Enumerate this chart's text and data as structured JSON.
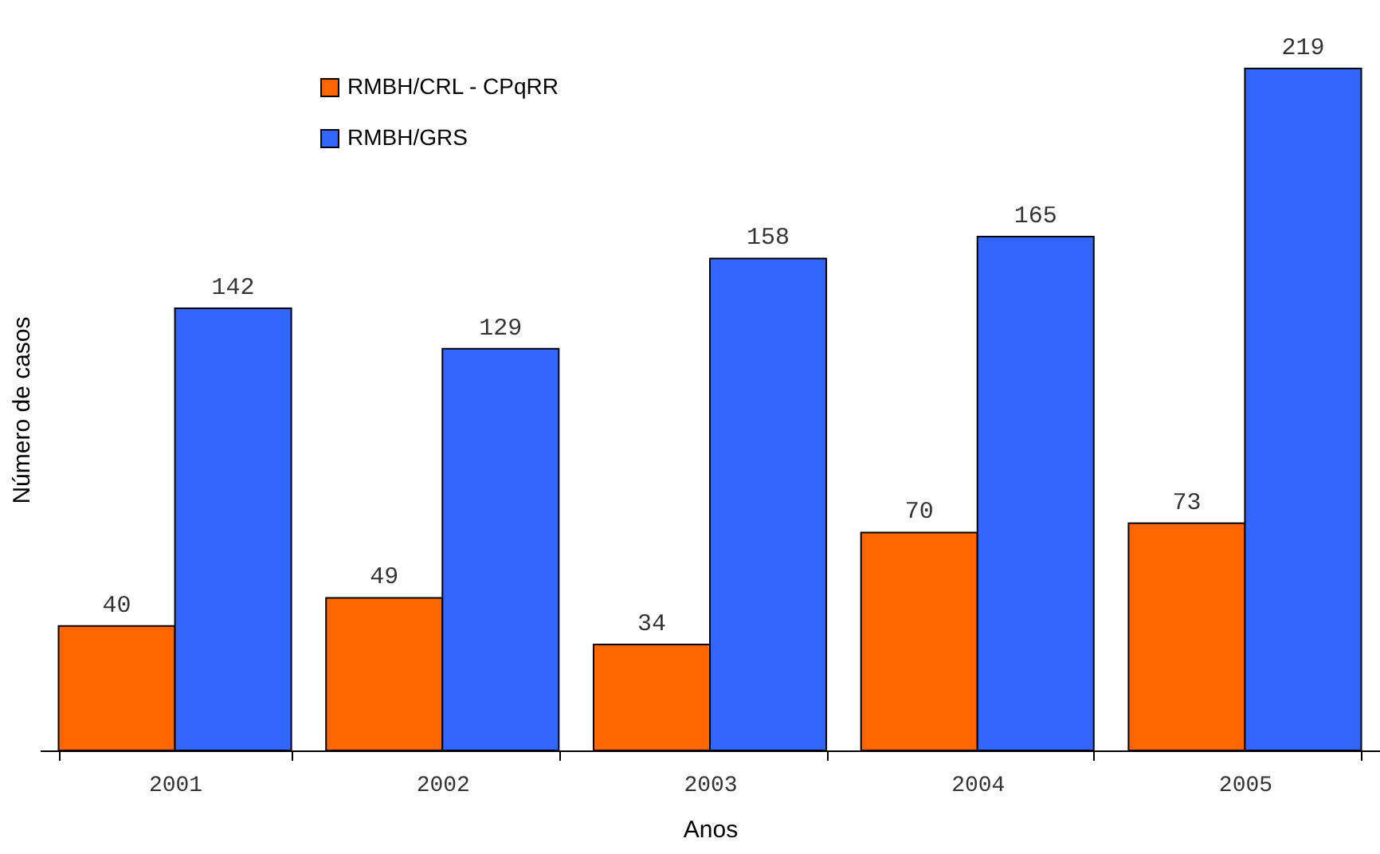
{
  "chart_data": {
    "type": "bar",
    "xlabel": "Anos",
    "ylabel": "Número de casos",
    "categories": [
      "2001",
      "2002",
      "2003",
      "2004",
      "2005"
    ],
    "series": [
      {
        "name": "RMBH/CRL - CPqRR",
        "color": "#ff6600",
        "values": [
          40,
          49,
          34,
          70,
          73
        ]
      },
      {
        "name": "RMBH/GRS",
        "color": "#3366ff",
        "values": [
          142,
          129,
          158,
          165,
          219
        ]
      }
    ],
    "data_labels": true,
    "legend": "top left",
    "grid": false
  }
}
